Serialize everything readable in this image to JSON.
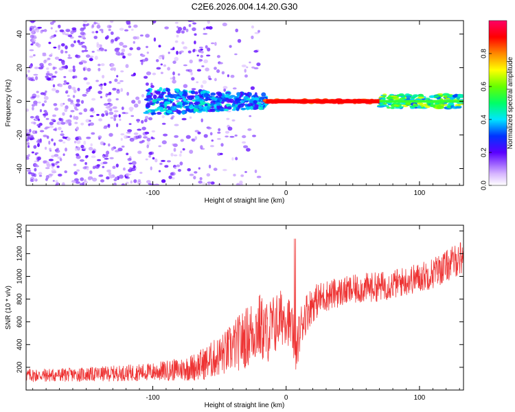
{
  "title": "C2E6.2026.004.14.20.G30",
  "chart_data": [
    {
      "type": "heatmap",
      "title": "C2E6.2026.004.14.20.G30",
      "xlabel": "Height of straight line (km)",
      "ylabel": "Frequency (Hz)",
      "xlim": [
        -195,
        133
      ],
      "ylim": [
        -50,
        48
      ],
      "xticks": [
        -100,
        0,
        100
      ],
      "yticks": [
        -40,
        -20,
        0,
        20,
        40
      ],
      "description_series": [
        {
          "name": "scattered low-amplitude noise",
          "x_range": [
            -195,
            -20
          ],
          "frequency_range": [
            -50,
            48
          ],
          "amplitude_range": [
            0.05,
            0.2
          ]
        },
        {
          "name": "narrowing band",
          "x_range": [
            -105,
            -15
          ],
          "frequency_range": [
            -8,
            8
          ],
          "amplitude_range": [
            0.2,
            0.45
          ]
        },
        {
          "name": "strong line near 0 Hz",
          "x_range": [
            -15,
            70
          ],
          "frequency_range": [
            -1,
            1
          ],
          "amplitude_range": [
            0.8,
            0.95
          ]
        },
        {
          "name": "wider band near 0 Hz",
          "x_range": [
            70,
            133
          ],
          "frequency_range": [
            -4,
            4
          ],
          "amplitude_range": [
            0.3,
            0.7
          ]
        }
      ],
      "colorbar": {
        "label": "Normalized spectral amplitude",
        "range": [
          0,
          1
        ],
        "ticks": [
          "0.0",
          "0.2",
          "0.4",
          "0.6",
          "0.8"
        ]
      }
    },
    {
      "type": "line",
      "xlabel": "Height of straight line (km)",
      "ylabel": "SNR (10 * v/v)",
      "xlim": [
        -195,
        133
      ],
      "ylim": [
        0,
        1450
      ],
      "xticks": [
        -100,
        0,
        100
      ],
      "yticks": [
        200,
        400,
        600,
        800,
        1000,
        1200,
        1400
      ],
      "series": [
        {
          "name": "SNR",
          "color": "#ee3333",
          "x": [
            -195,
            -180,
            -160,
            -140,
            -120,
            -100,
            -90,
            -80,
            -70,
            -60,
            -50,
            -45,
            -40,
            -35,
            -30,
            -25,
            -20,
            -15,
            -10,
            -5,
            0,
            5,
            7,
            9,
            12,
            15,
            20,
            25,
            30,
            40,
            50,
            60,
            70,
            80,
            90,
            100,
            110,
            120,
            133
          ],
          "values": [
            130,
            130,
            135,
            140,
            150,
            160,
            170,
            180,
            200,
            240,
            300,
            330,
            380,
            420,
            460,
            520,
            560,
            500,
            560,
            620,
            660,
            520,
            250,
            450,
            600,
            680,
            760,
            800,
            830,
            860,
            880,
            900,
            910,
            930,
            960,
            990,
            1030,
            1090,
            1180
          ],
          "noise": [
            60,
            60,
            60,
            65,
            70,
            80,
            90,
            100,
            120,
            150,
            180,
            200,
            220,
            250,
            270,
            290,
            300,
            280,
            280,
            260,
            240,
            200,
            150,
            200,
            200,
            180,
            160,
            150,
            140,
            130,
            130,
            130,
            130,
            130,
            130,
            130,
            140,
            140,
            150
          ]
        }
      ]
    }
  ]
}
